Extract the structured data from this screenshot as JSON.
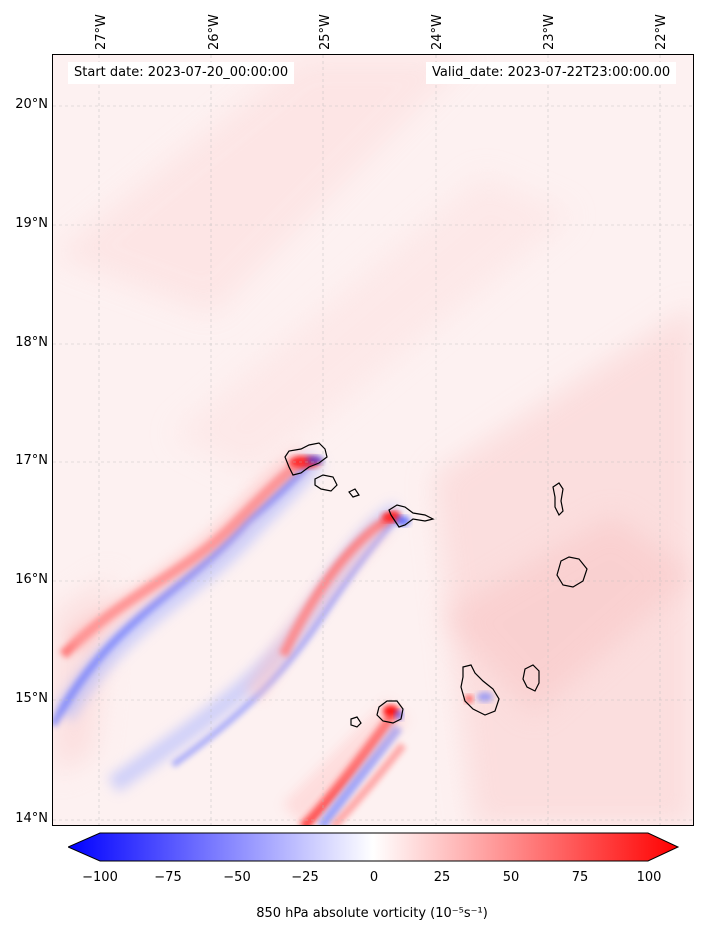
{
  "header": {
    "start_date": "Start date: 2023-07-20_00:00:00",
    "valid_date": "Valid_date: 2023-07-22T23:00:00.00"
  },
  "axes": {
    "longitude_labels": [
      "27°W",
      "26°W",
      "25°W",
      "24°W",
      "23°W",
      "22°W"
    ],
    "latitude_labels": [
      "20°N",
      "19°N",
      "18°N",
      "17°N",
      "16°N",
      "15°N",
      "14°N"
    ]
  },
  "map": {
    "field": "850 hPa absolute vorticity",
    "lon_range": [
      -27.4,
      -21.8
    ],
    "lat_range": [
      13.95,
      20.45
    ],
    "islands": [
      "Santo Antão",
      "São Vicente",
      "Santa Luzia",
      "São Nicolau",
      "Sal",
      "Boa Vista",
      "Maio",
      "Santiago",
      "Fogo",
      "Brava"
    ],
    "colors": {
      "positive": "#ff0000",
      "negative": "#0000ff",
      "background": "#fdf1f1"
    }
  },
  "colorbar": {
    "ticks": [
      "−100",
      "−75",
      "−50",
      "−25",
      "0",
      "25",
      "50",
      "75",
      "100"
    ],
    "min": -100,
    "max": 100,
    "label": "850 hPa absolute vorticity (10⁻⁵s⁻¹)"
  }
}
